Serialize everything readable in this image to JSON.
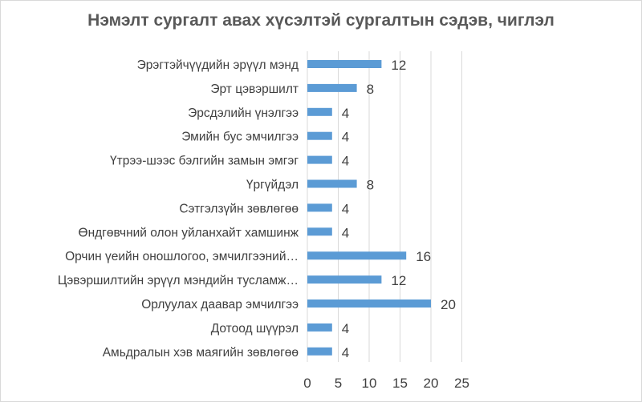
{
  "chart_data": {
    "type": "bar",
    "orientation": "horizontal",
    "title": "Нэмэлт сургалт авах хүсэлтэй сургалтын сэдэв, чиглэл",
    "categories": [
      "Эрэгтэйчүүдийн эрүүл мэнд",
      "Эрт цэвэршилт",
      "Эрсдэлийн үнэлгээ",
      "Эмийн бус эмчилгээ",
      "Үтрээ-шээс бэлгийн замын эмгэг",
      "Үргүйдэл",
      "Сэтгэлзүйн зөвлөгөө",
      "Өндгөвчний олон уйланхайт хамшинж",
      "Орчин үеийн оношлогоо, эмчилгээний…",
      "Цэвэршилтийн эрүүл мэндийн тусламж…",
      "Орлуулах даавар эмчилгээ",
      "Дотоод шүүрэл",
      "Амьдралын хэв маягийн зөвлөгөө"
    ],
    "values": [
      12,
      8,
      4,
      4,
      4,
      8,
      4,
      4,
      16,
      12,
      20,
      4,
      4
    ],
    "xlim": [
      0,
      25
    ],
    "xticks": [
      0,
      5,
      10,
      15,
      20,
      25
    ],
    "grid": "vertical",
    "data_labels": true,
    "legend": "none",
    "bar_color": "#5b9bd5",
    "grid_color": "#d9d9d9"
  }
}
